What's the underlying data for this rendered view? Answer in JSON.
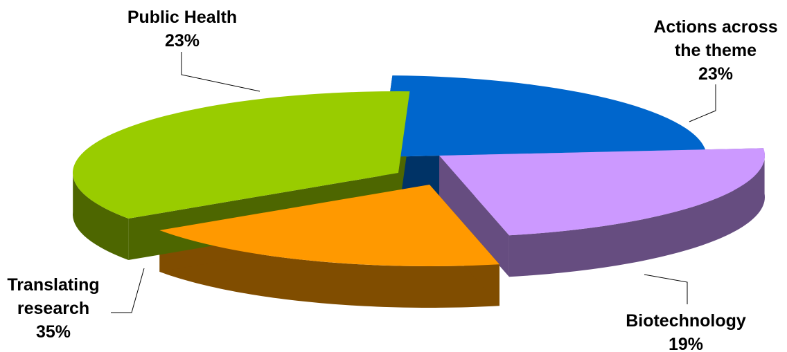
{
  "chart_data": {
    "type": "pie",
    "style": "3d-exploded",
    "title": "",
    "slices": [
      {
        "label": [
          "Public Health"
        ],
        "value": 23,
        "percent_label": "23%",
        "color": "#0066CC",
        "side_color": "#003366"
      },
      {
        "label": [
          "Actions across",
          "the theme"
        ],
        "value": 23,
        "percent_label": "23%",
        "color": "#CC99FF",
        "side_color": "#664D80"
      },
      {
        "label": [
          "Biotechnology"
        ],
        "value": 19,
        "percent_label": "19%",
        "color": "#FF9900",
        "side_color": "#804D00"
      },
      {
        "label": [
          "Translating",
          "research"
        ],
        "value": 35,
        "percent_label": "35%",
        "color": "#99CC00",
        "side_color": "#4D6600"
      }
    ]
  }
}
